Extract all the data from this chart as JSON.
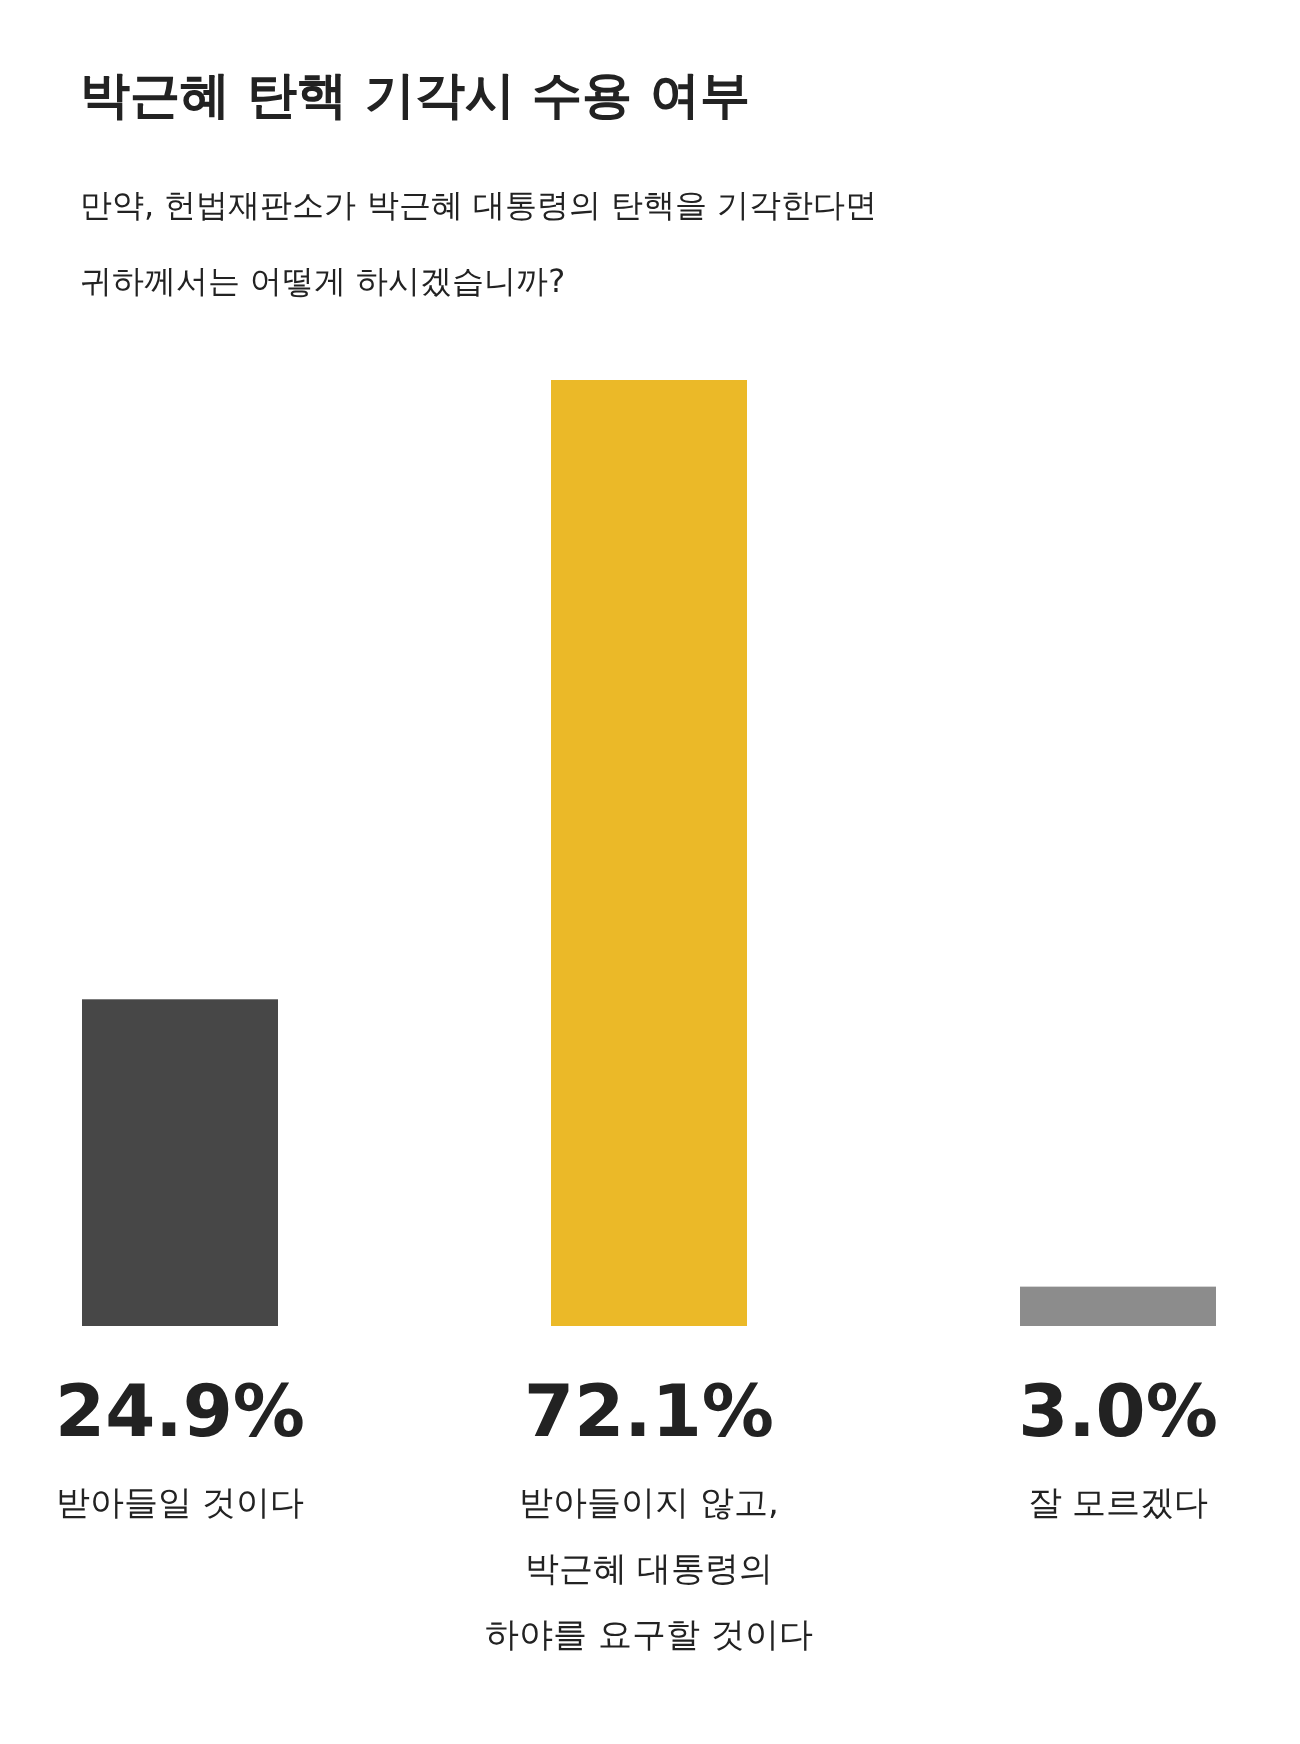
{
  "chart_data": {
    "type": "bar",
    "title": "박근혜 탄핵 기각시 수용 여부",
    "subtitle": "만약, 헌법재판소가 박근혜 대통령의 탄핵을 기각한다면\n귀하께서는 어떻게 하시겠습니까?",
    "categories": [
      "받아들일 것이다",
      "받아들이지 않고,\n박근혜 대통령의\n하야를 요구할 것이다",
      "잘 모르겠다"
    ],
    "values": [
      24.9,
      72.1,
      3.0
    ],
    "colors": [
      "#474747",
      "#ebb928",
      "#8c8c8c"
    ],
    "value_labels": [
      "24.9%",
      "72.1%",
      "3.0%"
    ]
  }
}
